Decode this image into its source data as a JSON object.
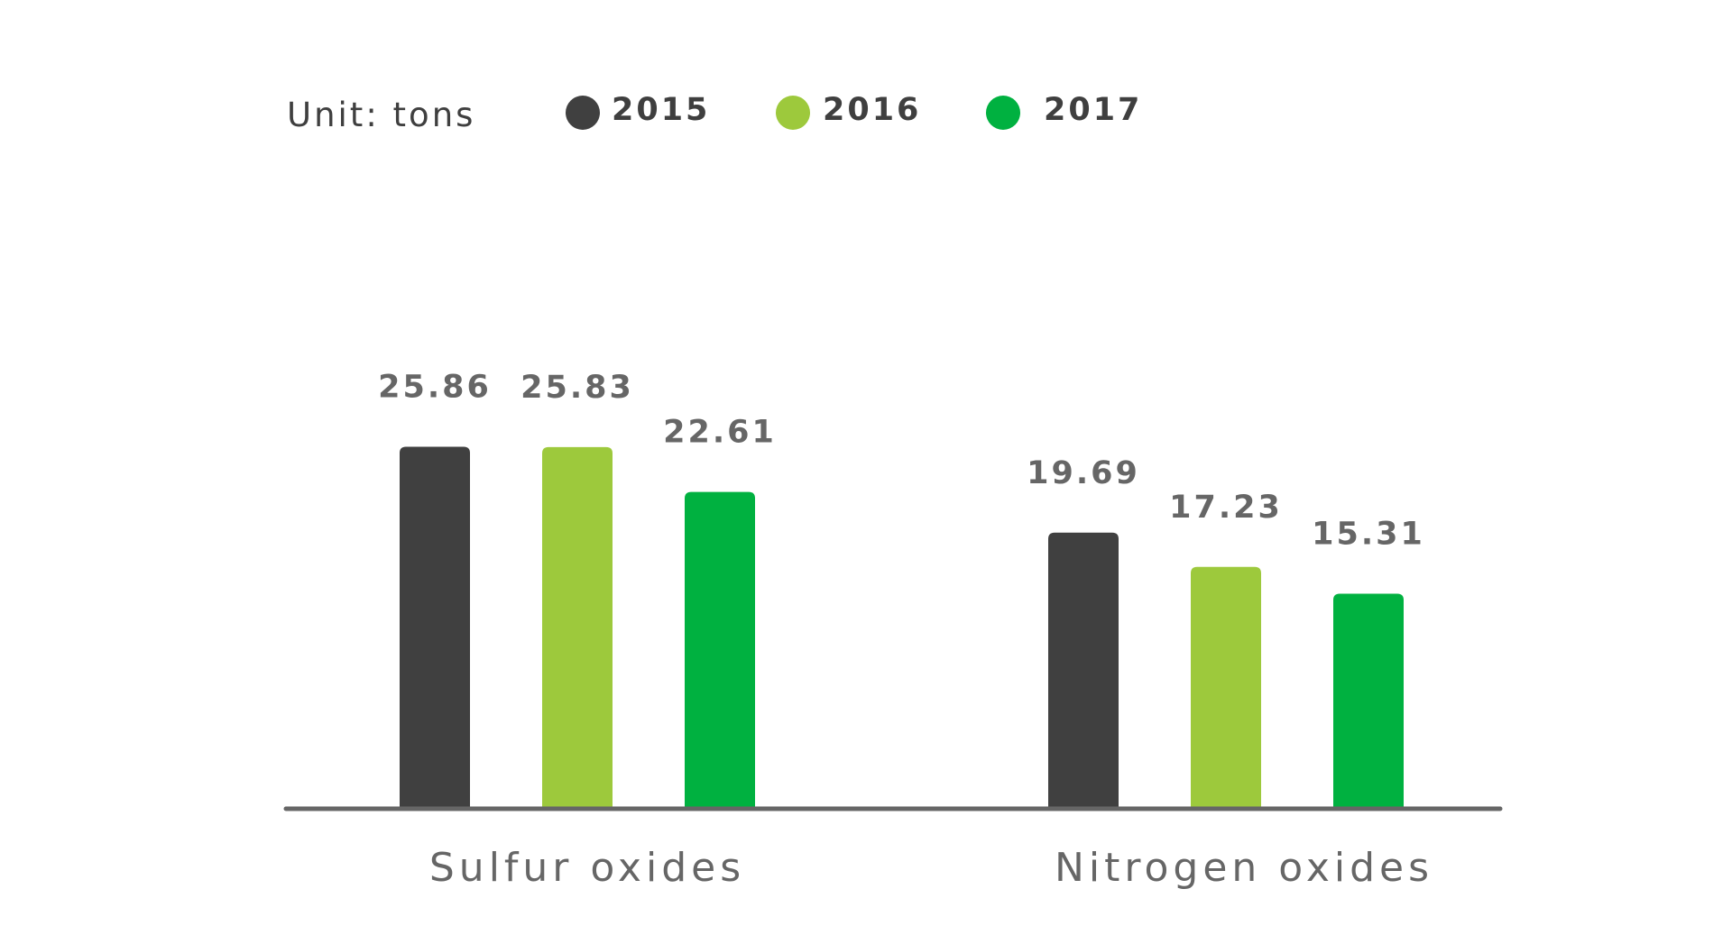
{
  "chart_data": {
    "type": "bar",
    "unit_label": "Unit: tons",
    "categories": [
      "Sulfur oxides",
      "Nitrogen oxides"
    ],
    "series": [
      {
        "name": "2015",
        "values": [
          25.86,
          19.69
        ],
        "value_labels": [
          "25.86",
          "19.69"
        ],
        "color": "#404040"
      },
      {
        "name": "2016",
        "values": [
          25.83,
          17.23
        ],
        "value_labels": [
          "25.83",
          "17.23"
        ],
        "color": "#9dc93c"
      },
      {
        "name": "2017",
        "values": [
          22.61,
          15.31
        ],
        "value_labels": [
          "22.61",
          "15.31"
        ],
        "color": "#00b140"
      }
    ],
    "ylim": [
      0,
      26
    ],
    "grid": false,
    "legend_position": "top",
    "colors": {
      "text": "#3f3f3f",
      "value_text": "#666666",
      "category_text": "#666666",
      "axis": "#666666"
    }
  }
}
